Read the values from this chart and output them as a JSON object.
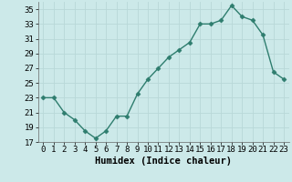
{
  "x": [
    0,
    1,
    2,
    3,
    4,
    5,
    6,
    7,
    8,
    9,
    10,
    11,
    12,
    13,
    14,
    15,
    16,
    17,
    18,
    19,
    20,
    21,
    22,
    23
  ],
  "y": [
    23,
    23,
    21,
    20,
    18.5,
    17.5,
    18.5,
    20.5,
    20.5,
    23.5,
    25.5,
    27,
    28.5,
    29.5,
    30.5,
    33,
    33,
    33.5,
    35.5,
    34,
    33.5,
    31.5,
    26.5,
    25.5
  ],
  "line_color": "#2e7d6e",
  "marker": "D",
  "marker_size": 2.5,
  "linewidth": 1.0,
  "xlabel": "Humidex (Indice chaleur)",
  "xlim": [
    -0.5,
    23.5
  ],
  "ylim": [
    17,
    36
  ],
  "yticks": [
    17,
    19,
    21,
    23,
    25,
    27,
    29,
    31,
    33,
    35
  ],
  "xticks": [
    0,
    1,
    2,
    3,
    4,
    5,
    6,
    7,
    8,
    9,
    10,
    11,
    12,
    13,
    14,
    15,
    16,
    17,
    18,
    19,
    20,
    21,
    22,
    23
  ],
  "bg_color": "#cce9e9",
  "grid_color": "#b8d8d8",
  "tick_fontsize": 6.5,
  "xlabel_fontsize": 7.5
}
